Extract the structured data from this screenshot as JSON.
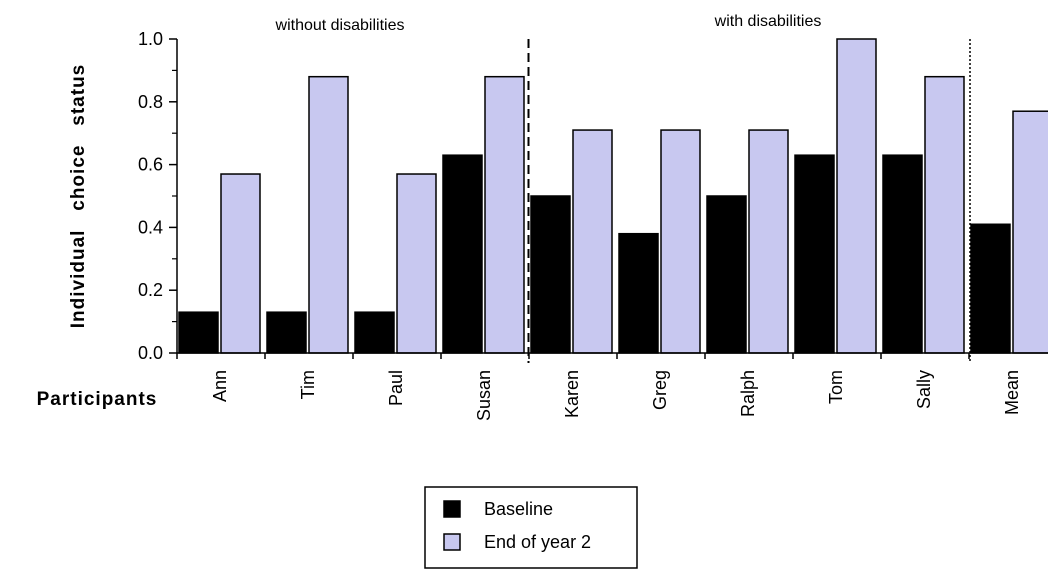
{
  "chart_data": {
    "type": "bar",
    "ylabel": "Individual   choice   status",
    "xlabel": "Participants",
    "ylim": [
      0,
      1.0
    ],
    "yticks": [
      "0.0",
      "0.2",
      "0.4",
      "0.6",
      "0.8",
      "1.0"
    ],
    "grid": false,
    "legend_position": "bottom-center",
    "group_labels": [
      "without disabilities",
      "with disabilities"
    ],
    "categories": [
      "Ann",
      "Tim",
      "Paul",
      "Susan",
      "Karen",
      "Greg",
      "Ralph",
      "Tom",
      "Sally",
      "Mean"
    ],
    "series": [
      {
        "name": "Baseline",
        "color": "#000000",
        "values": [
          0.13,
          0.13,
          0.13,
          0.63,
          0.5,
          0.38,
          0.5,
          0.63,
          0.63,
          0.41
        ]
      },
      {
        "name": "End of year 2",
        "color": "#c8c8f0",
        "values": [
          0.57,
          0.88,
          0.57,
          0.88,
          0.71,
          0.71,
          0.71,
          1.0,
          0.88,
          0.77
        ]
      }
    ]
  }
}
